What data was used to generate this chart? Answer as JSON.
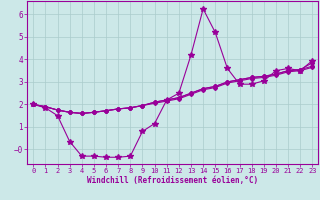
{
  "background_color": "#cce8e8",
  "grid_color": "#aacccc",
  "line_color": "#990099",
  "xlabel": "Windchill (Refroidissement éolien,°C)",
  "xlim": [
    -0.5,
    23.5
  ],
  "ylim": [
    -0.65,
    6.6
  ],
  "xticks": [
    0,
    1,
    2,
    3,
    4,
    5,
    6,
    7,
    8,
    9,
    10,
    11,
    12,
    13,
    14,
    15,
    16,
    17,
    18,
    19,
    20,
    21,
    22,
    23
  ],
  "yticks": [
    0,
    1,
    2,
    3,
    4,
    5,
    6
  ],
  "ytick_labels": [
    "−0",
    "1",
    "2",
    "3",
    "4",
    "5",
    "6"
  ],
  "series": [
    {
      "x": [
        0,
        1,
        2,
        3,
        4,
        5,
        6,
        7,
        8,
        9,
        10,
        11,
        12,
        13,
        14,
        15,
        16,
        17,
        18,
        19,
        20,
        21,
        22,
        23
      ],
      "y": [
        2.0,
        1.85,
        1.5,
        0.35,
        -0.3,
        -0.3,
        -0.35,
        -0.35,
        -0.3,
        0.8,
        1.15,
        2.2,
        2.5,
        4.2,
        6.25,
        5.2,
        3.6,
        2.9,
        2.9,
        3.05,
        3.5,
        3.6,
        3.5,
        3.95
      ]
    },
    {
      "x": [
        0,
        1,
        2,
        3,
        4,
        5,
        6,
        7,
        8,
        9,
        10,
        11,
        12,
        13,
        14,
        15,
        16,
        17,
        18,
        19,
        20,
        21,
        22,
        23
      ],
      "y": [
        2.0,
        1.9,
        1.75,
        1.65,
        1.6,
        1.65,
        1.72,
        1.8,
        1.85,
        1.95,
        2.05,
        2.15,
        2.25,
        2.45,
        2.65,
        2.75,
        2.95,
        3.05,
        3.15,
        3.2,
        3.3,
        3.45,
        3.5,
        3.65
      ]
    },
    {
      "x": [
        0,
        1,
        2,
        3,
        4,
        5,
        6,
        7,
        8,
        9,
        10,
        11,
        12,
        13,
        14,
        15,
        16,
        17,
        18,
        19,
        20,
        21,
        22,
        23
      ],
      "y": [
        2.0,
        1.9,
        1.75,
        1.65,
        1.6,
        1.65,
        1.72,
        1.8,
        1.85,
        1.95,
        2.1,
        2.2,
        2.3,
        2.5,
        2.7,
        2.8,
        3.0,
        3.1,
        3.2,
        3.25,
        3.35,
        3.5,
        3.55,
        3.7
      ]
    },
    {
      "x": [
        0,
        1,
        2,
        3,
        4,
        5,
        6,
        7,
        8,
        9,
        10,
        11,
        12,
        13,
        14,
        15,
        16,
        17,
        18,
        19,
        20,
        21,
        22,
        23
      ],
      "y": [
        2.0,
        1.9,
        1.75,
        1.65,
        1.6,
        1.65,
        1.72,
        1.8,
        1.85,
        1.95,
        2.1,
        2.2,
        2.3,
        2.5,
        2.7,
        2.8,
        3.0,
        3.1,
        3.2,
        3.25,
        3.35,
        3.5,
        3.55,
        3.85
      ]
    }
  ]
}
